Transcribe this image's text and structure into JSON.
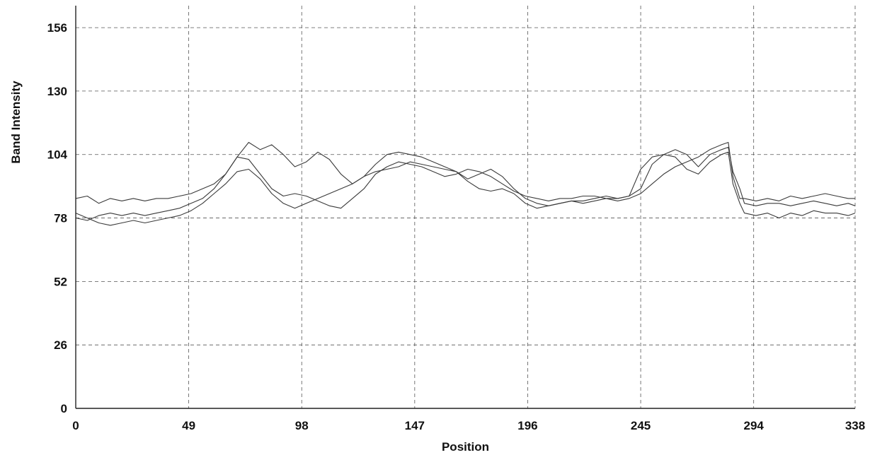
{
  "chart_data": {
    "type": "line",
    "title": "",
    "xlabel": "Position",
    "ylabel": "Band Intensity",
    "xlim": [
      0,
      338
    ],
    "ylim": [
      0,
      165
    ],
    "x_ticks": [
      0,
      49,
      98,
      147,
      196,
      245,
      294,
      338
    ],
    "y_ticks": [
      0,
      26,
      52,
      78,
      104,
      130,
      156
    ],
    "grid": true,
    "legend": "none",
    "line_color": "#3a3a3a",
    "series": [
      {
        "x": [
          0,
          5,
          10,
          15,
          20,
          25,
          30,
          35,
          40,
          45,
          50,
          55,
          60,
          65,
          70,
          75,
          80,
          85,
          90,
          95,
          100,
          105,
          110,
          115,
          120,
          125,
          130,
          135,
          140,
          145,
          150,
          155,
          160,
          165,
          170,
          175,
          180,
          185,
          190,
          195,
          200,
          205,
          210,
          215,
          220,
          225,
          230,
          235,
          240,
          245,
          250,
          255,
          260,
          265,
          270,
          275,
          280,
          283,
          285,
          288,
          290,
          295,
          300,
          305,
          310,
          315,
          320,
          325,
          330,
          335,
          338
        ],
        "y": [
          86,
          87,
          84,
          86,
          85,
          86,
          85,
          86,
          86,
          87,
          88,
          90,
          92,
          96,
          103,
          109,
          106,
          108,
          104,
          99,
          101,
          105,
          102,
          96,
          92,
          95,
          100,
          104,
          105,
          104,
          103,
          101,
          99,
          97,
          94,
          96,
          98,
          95,
          90,
          86,
          84,
          83,
          84,
          85,
          85,
          86,
          87,
          86,
          87,
          90,
          100,
          104,
          103,
          98,
          96,
          101,
          104,
          105,
          92,
          84,
          80,
          79,
          80,
          78,
          80,
          79,
          81,
          80,
          80,
          79,
          80
        ]
      },
      {
        "x": [
          0,
          5,
          10,
          15,
          20,
          25,
          30,
          35,
          40,
          45,
          50,
          55,
          60,
          65,
          70,
          75,
          80,
          85,
          90,
          95,
          100,
          105,
          110,
          115,
          120,
          125,
          130,
          135,
          140,
          145,
          150,
          155,
          160,
          165,
          170,
          175,
          180,
          185,
          190,
          195,
          200,
          205,
          210,
          215,
          220,
          225,
          230,
          235,
          240,
          245,
          250,
          255,
          260,
          265,
          270,
          275,
          280,
          283,
          285,
          288,
          290,
          295,
          300,
          305,
          310,
          315,
          320,
          325,
          330,
          335,
          338
        ],
        "y": [
          78,
          77,
          79,
          80,
          79,
          80,
          79,
          80,
          81,
          82,
          84,
          86,
          90,
          96,
          103,
          102,
          96,
          90,
          87,
          88,
          87,
          85,
          83,
          82,
          86,
          90,
          96,
          99,
          101,
          100,
          99,
          97,
          95,
          96,
          98,
          97,
          95,
          92,
          89,
          87,
          86,
          85,
          86,
          86,
          87,
          87,
          86,
          86,
          87,
          98,
          103,
          104,
          106,
          104,
          99,
          104,
          106,
          107,
          97,
          90,
          84,
          83,
          84,
          84,
          83,
          84,
          85,
          84,
          83,
          84,
          83
        ]
      },
      {
        "x": [
          0,
          5,
          10,
          15,
          20,
          25,
          30,
          35,
          40,
          45,
          50,
          55,
          60,
          65,
          70,
          75,
          80,
          85,
          90,
          95,
          100,
          105,
          110,
          115,
          120,
          125,
          130,
          135,
          140,
          145,
          150,
          155,
          160,
          165,
          170,
          175,
          180,
          185,
          190,
          195,
          200,
          205,
          210,
          215,
          220,
          225,
          230,
          235,
          240,
          245,
          250,
          255,
          260,
          265,
          270,
          275,
          280,
          283,
          285,
          288,
          290,
          295,
          300,
          305,
          310,
          315,
          320,
          325,
          330,
          335,
          338
        ],
        "y": [
          80,
          78,
          76,
          75,
          76,
          77,
          76,
          77,
          78,
          79,
          81,
          84,
          88,
          92,
          97,
          98,
          94,
          88,
          84,
          82,
          84,
          86,
          88,
          90,
          92,
          95,
          97,
          98,
          99,
          101,
          100,
          99,
          98,
          97,
          93,
          90,
          89,
          90,
          88,
          84,
          82,
          83,
          84,
          85,
          84,
          85,
          86,
          85,
          86,
          88,
          92,
          96,
          99,
          101,
          103,
          106,
          108,
          109,
          95,
          86,
          86,
          85,
          86,
          85,
          87,
          86,
          87,
          88,
          87,
          86,
          86
        ]
      }
    ]
  }
}
